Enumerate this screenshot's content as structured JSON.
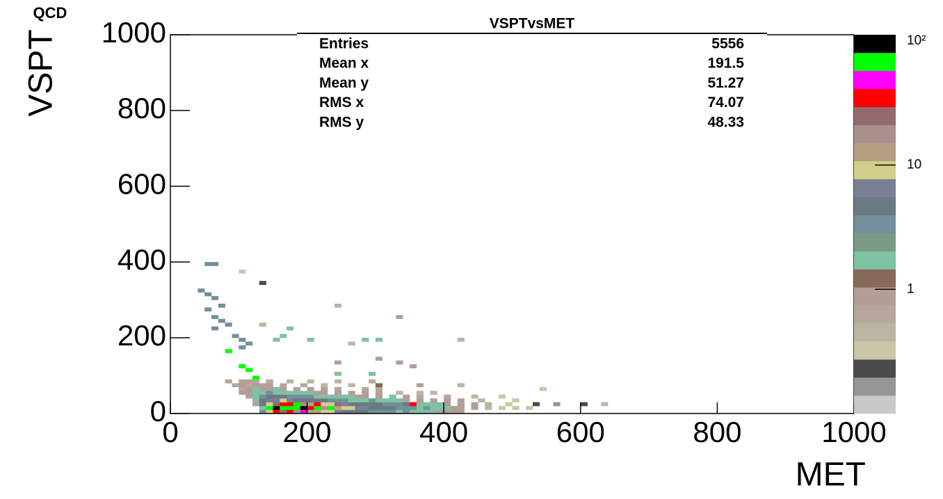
{
  "chart_data": {
    "type": "hist2d",
    "title": "VSPTvsMET",
    "xlabel": "MET",
    "ylabel": "VSPT",
    "annotation": "QCD",
    "xlim": [
      0,
      1000
    ],
    "ylim": [
      0,
      1000
    ],
    "xticks": [
      0,
      200,
      400,
      600,
      800,
      1000
    ],
    "yticks": [
      0,
      200,
      400,
      600,
      800,
      1000
    ],
    "zlim": [
      0.1,
      112
    ],
    "zticks": [
      1,
      10,
      {
        "value": 100,
        "label": "10²"
      }
    ],
    "zscale": "log",
    "palette": [
      "#c8c8c8",
      "#969696",
      "#4a4a4a",
      "#cbc6a8",
      "#bab6a3",
      "#b7a79c",
      "#b39e97",
      "#886a5a",
      "#7fc1a3",
      "#7a9a86",
      "#72909a",
      "#6a7a82",
      "#7a7f96",
      "#d2ce8c",
      "#b89e82",
      "#ab8f8e",
      "#956a6e",
      "#ff0000",
      "#ff00ff",
      "#00ff00",
      "#000000"
    ],
    "stats": [
      {
        "name": "Entries",
        "value": 5556
      },
      {
        "name": "Mean x",
        "value": 191.5
      },
      {
        "name": "Mean y",
        "value": 51.27
      },
      {
        "name": "RMS x",
        "value": 74.07
      },
      {
        "name": "RMS y",
        "value": 48.33
      }
    ],
    "x": [
      130,
      140,
      150,
      160,
      170,
      180,
      190,
      200,
      210,
      220,
      230,
      240,
      250,
      260,
      270,
      280,
      290,
      300,
      310,
      320,
      330,
      340,
      350,
      360,
      370,
      380,
      390,
      400,
      410,
      420,
      130,
      140,
      150,
      160,
      170,
      180,
      190,
      200,
      210,
      220,
      230,
      240,
      250,
      260,
      270,
      280,
      290,
      300,
      310,
      320,
      330,
      340,
      350,
      360,
      370,
      380,
      390,
      400,
      410,
      420,
      440,
      460,
      480,
      500,
      520,
      120,
      130,
      140,
      150,
      160,
      170,
      180,
      190,
      200,
      210,
      220,
      230,
      240,
      250,
      260,
      270,
      280,
      290,
      300,
      310,
      320,
      330,
      340,
      350,
      360,
      370,
      380,
      390,
      400,
      420,
      440,
      460,
      490,
      530,
      560,
      600,
      630,
      120,
      130,
      140,
      150,
      160,
      170,
      180,
      190,
      200,
      210,
      220,
      230,
      240,
      250,
      260,
      270,
      280,
      290,
      300,
      310,
      320,
      330,
      340,
      360,
      380,
      400,
      420,
      450,
      500,
      110,
      120,
      130,
      140,
      150,
      160,
      170,
      180,
      190,
      200,
      210,
      220,
      230,
      240,
      250,
      260,
      270,
      280,
      300,
      320,
      340,
      360,
      400,
      440,
      480,
      100,
      110,
      120,
      130,
      140,
      150,
      160,
      170,
      180,
      190,
      200,
      210,
      220,
      240,
      260,
      280,
      300,
      330,
      360,
      380,
      100,
      110,
      120,
      130,
      140,
      150,
      160,
      180,
      200,
      220,
      240,
      280,
      300,
      540,
      90,
      100,
      110,
      120,
      130,
      140,
      160,
      190,
      220,
      260,
      300,
      420,
      80,
      100,
      110,
      120,
      140,
      170,
      200,
      240,
      290,
      60,
      50,
      100,
      130,
      40,
      50,
      60,
      70,
      50,
      60,
      70,
      80,
      60,
      90,
      100,
      110,
      100,
      80,
      100,
      110,
      120,
      240,
      330,
      130,
      170,
      160,
      150,
      200,
      260,
      280,
      300,
      420,
      300,
      240,
      330,
      350,
      240,
      290,
      360
    ],
    "y": [
      0,
      0,
      0,
      0,
      0,
      0,
      0,
      0,
      0,
      0,
      0,
      0,
      0,
      0,
      0,
      0,
      0,
      0,
      0,
      0,
      0,
      0,
      0,
      0,
      0,
      0,
      0,
      0,
      0,
      0,
      10,
      10,
      10,
      10,
      10,
      10,
      10,
      10,
      10,
      10,
      10,
      10,
      10,
      10,
      10,
      10,
      10,
      10,
      10,
      10,
      10,
      10,
      10,
      10,
      10,
      10,
      10,
      10,
      10,
      10,
      10,
      10,
      10,
      10,
      10,
      20,
      20,
      20,
      20,
      20,
      20,
      20,
      20,
      20,
      20,
      20,
      20,
      20,
      20,
      20,
      20,
      20,
      20,
      20,
      20,
      20,
      20,
      20,
      20,
      20,
      20,
      20,
      20,
      20,
      20,
      20,
      20,
      20,
      20,
      20,
      20,
      20,
      30,
      30,
      30,
      30,
      30,
      30,
      30,
      30,
      30,
      30,
      30,
      30,
      30,
      30,
      30,
      30,
      30,
      30,
      30,
      30,
      30,
      30,
      30,
      30,
      30,
      30,
      30,
      30,
      30,
      40,
      40,
      40,
      40,
      40,
      40,
      40,
      40,
      40,
      40,
      40,
      40,
      40,
      40,
      40,
      40,
      40,
      40,
      40,
      40,
      40,
      40,
      40,
      40,
      40,
      50,
      50,
      50,
      50,
      50,
      50,
      50,
      50,
      50,
      50,
      50,
      50,
      50,
      50,
      50,
      50,
      50,
      50,
      50,
      50,
      60,
      60,
      60,
      60,
      60,
      60,
      60,
      60,
      60,
      60,
      60,
      60,
      60,
      60,
      70,
      70,
      70,
      70,
      70,
      70,
      70,
      70,
      70,
      70,
      70,
      70,
      80,
      80,
      80,
      80,
      80,
      80,
      80,
      80,
      80,
      390,
      390,
      370,
      340,
      320,
      310,
      300,
      280,
      270,
      250,
      240,
      230,
      220,
      200,
      190,
      180,
      170,
      160,
      120,
      110,
      90,
      280,
      250,
      230,
      220,
      200,
      190,
      190,
      180,
      190,
      190,
      190,
      140,
      130,
      130,
      120,
      100,
      100,
      70
    ],
    "z": [
      3,
      8,
      30,
      25,
      40,
      20,
      50,
      15,
      12,
      10,
      8,
      6,
      5,
      5,
      4,
      4,
      3,
      3,
      3,
      3,
      2,
      3,
      2,
      2,
      2,
      2,
      1,
      1,
      1,
      1,
      2,
      60,
      100,
      80,
      70,
      60,
      100,
      40,
      70,
      20,
      60,
      15,
      10,
      8,
      6,
      6,
      5,
      5,
      4,
      4,
      3,
      3,
      3,
      2,
      3,
      2,
      2,
      2,
      1,
      1,
      1,
      0.5,
      0.3,
      0.3,
      0.3,
      1,
      4,
      8,
      25,
      30,
      40,
      70,
      20,
      12,
      30,
      10,
      8,
      25,
      6,
      5,
      5,
      4,
      4,
      4,
      3,
      3,
      3,
      4,
      40,
      2,
      2,
      2,
      2,
      1,
      1,
      1,
      0.5,
      0.3,
      0.2,
      0.15,
      0.2,
      0.5,
      2,
      5,
      6,
      7,
      8,
      6,
      5,
      4,
      4,
      5,
      4,
      3,
      3,
      3,
      2,
      2,
      2,
      3,
      2,
      2,
      2,
      2,
      1,
      1,
      1,
      1,
      0.8,
      0.5,
      0.3,
      1,
      2,
      3,
      4,
      4,
      5,
      3,
      3,
      3,
      3,
      2,
      2,
      2,
      2,
      1.5,
      1.5,
      1,
      1,
      1,
      1.5,
      0.8,
      0.7,
      0.6,
      0.5,
      0.3,
      1,
      1,
      2,
      2,
      3,
      2,
      2,
      2,
      2,
      1.5,
      1.5,
      1,
      1,
      1,
      0.8,
      1,
      0.8,
      0.5,
      0.5,
      0.5,
      0.6,
      1,
      1.5,
      1,
      1,
      1.5,
      1,
      1,
      1,
      0.8,
      0.7,
      0.6,
      0.7,
      0.3,
      0.7,
      0.8,
      0.7,
      0.8,
      1,
      0.8,
      0.7,
      0.6,
      0.5,
      0.5,
      1.2,
      0.5,
      0.6,
      1,
      0.8,
      0.7,
      0.6,
      0.5,
      0.4,
      0.5,
      0.6,
      3,
      3,
      0.3,
      0.2,
      3,
      3,
      3,
      3,
      3,
      3,
      3,
      3,
      3,
      3,
      3,
      3,
      3,
      60,
      60,
      60,
      60,
      0.5,
      1,
      0.4,
      2,
      2,
      2,
      2,
      0.5,
      2,
      2,
      0.5,
      1,
      1,
      1,
      1,
      2,
      2,
      1
    ]
  }
}
